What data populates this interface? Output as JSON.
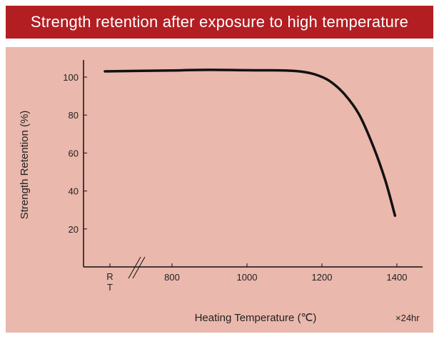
{
  "header": {
    "title": "Strength retention after exposure to high temperature"
  },
  "chart_data": {
    "type": "line",
    "title": "Strength retention after exposure to high temperature",
    "xlabel": "Heating Temperature (℃)",
    "ylabel": "Strength Retention (%)",
    "note": "×24hr",
    "rt_label": "R T",
    "rt_label_chars": [
      "R",
      "T"
    ],
    "axis_break": true,
    "xlim": [
      700,
      1450
    ],
    "ylim": [
      0,
      110
    ],
    "xticks": [
      800,
      1000,
      1200,
      1400
    ],
    "xtick_labels": [
      "800",
      "1000",
      "1200",
      "1400"
    ],
    "yticks": [
      20,
      40,
      60,
      80,
      100
    ],
    "ytick_labels": [
      "20",
      "40",
      "60",
      "80",
      "100"
    ],
    "series": [
      {
        "name": "Strength retention",
        "color": "#111111",
        "points": [
          {
            "x": "RT",
            "y": 103
          },
          {
            "x": 800,
            "y": 103.5
          },
          {
            "x": 900,
            "y": 103.8
          },
          {
            "x": 1000,
            "y": 103.6
          },
          {
            "x": 1100,
            "y": 103.5
          },
          {
            "x": 1140,
            "y": 103
          },
          {
            "x": 1180,
            "y": 101.5
          },
          {
            "x": 1220,
            "y": 98
          },
          {
            "x": 1260,
            "y": 91
          },
          {
            "x": 1300,
            "y": 80
          },
          {
            "x": 1340,
            "y": 62
          },
          {
            "x": 1370,
            "y": 45
          },
          {
            "x": 1395,
            "y": 27
          }
        ]
      }
    ]
  },
  "colors": {
    "title_bg": "#b21e22",
    "panel_bg": "#eab8ac",
    "line": "#111111"
  }
}
